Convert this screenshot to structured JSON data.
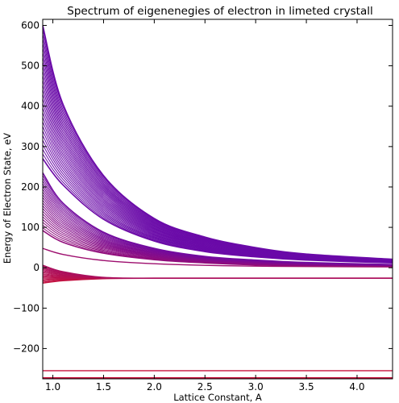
{
  "chart_data": {
    "type": "line",
    "title": "Spectrum of eigenenegies of electron in limeted crystall",
    "xlabel": "Lattice Constant, A",
    "ylabel": "Energy of Electron State, eV",
    "xlim": [
      0.9,
      4.35
    ],
    "ylim": [
      -275,
      615
    ],
    "xticks": [
      1.0,
      1.5,
      2.0,
      2.5,
      3.0,
      3.5,
      4.0
    ],
    "xtick_labels": [
      "1.0",
      "1.5",
      "2.0",
      "2.5",
      "3.0",
      "3.5",
      "4.0"
    ],
    "yticks": [
      -200,
      -100,
      0,
      100,
      200,
      300,
      400,
      500,
      600
    ],
    "ytick_labels": [
      "−200",
      "−100",
      "0",
      "100",
      "200",
      "300",
      "400",
      "500",
      "600"
    ],
    "grid": false,
    "legend": "none",
    "color_gradient": [
      "#c8123c",
      "#6a0aa8"
    ],
    "x": [
      0.9,
      1.1,
      1.5,
      2.0,
      2.5,
      3.0,
      3.5,
      4.35
    ],
    "bands": [
      {
        "count": 18,
        "lower": [
          -38,
          -32,
          -27,
          -26,
          -26,
          -26,
          -26,
          -26
        ],
        "upper": [
          6,
          -10,
          -24,
          -26,
          -26,
          -26,
          -26,
          -26
        ]
      },
      {
        "count": 22,
        "lower": [
          92,
          63,
          36,
          20,
          12,
          7,
          5,
          3
        ],
        "upper": [
          235,
          160,
          88,
          48,
          28,
          19,
          13,
          8
        ]
      },
      {
        "count": 30,
        "lower": [
          270,
          205,
          120,
          66,
          40,
          27,
          19,
          12
        ],
        "upper": [
          600,
          405,
          228,
          122,
          76,
          50,
          34,
          21
        ]
      }
    ],
    "single_levels": [
      {
        "name": "",
        "values": [
          48,
          33,
          18,
          10,
          6,
          4,
          3,
          2
        ]
      },
      {
        "name": "",
        "values": [
          -255,
          -255,
          -255,
          -255,
          -255,
          -255,
          -255,
          -255
        ]
      },
      {
        "name": "",
        "values": [
          -273,
          -273,
          -273,
          -273,
          -273,
          -273,
          -273,
          -273
        ]
      }
    ]
  }
}
